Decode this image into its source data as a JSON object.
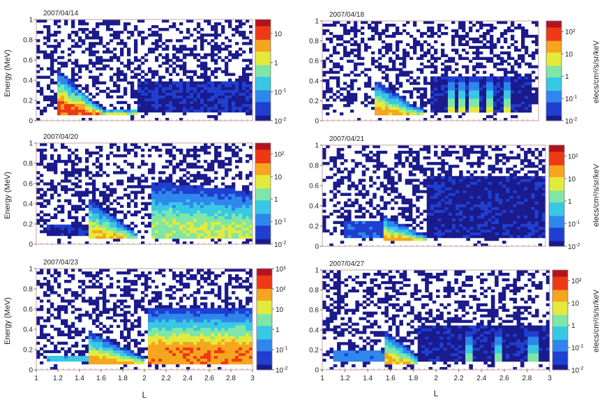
{
  "figure": {
    "xlabel": "L",
    "ylabel": "Energy (MeV)",
    "colorbar_label": "elecs/cm²/s/sr/keV"
  },
  "colormap": [
    "#1a1a8c",
    "#1f3fd0",
    "#2f86ec",
    "#38c8e6",
    "#7ee6a6",
    "#e3ea3c",
    "#f6a51e",
    "#ee3a14",
    "#b5121f"
  ],
  "chart_data": [
    {
      "type": "heatmap",
      "title": "2007/04/14",
      "x_axis": {
        "range": [
          1,
          3
        ],
        "ticks": []
      },
      "y_axis": {
        "range": [
          0,
          1
        ],
        "ticks": [
          0,
          0.2,
          0.4,
          0.6,
          0.8,
          1
        ]
      },
      "colorbar": {
        "scale": "log",
        "range": [
          0.01,
          30
        ],
        "tick_labels": [
          "10",
          "1",
          "10-1",
          "10-2"
        ],
        "tick_values": [
          10,
          1,
          0.1,
          0.01
        ]
      },
      "features": [
        {
          "kind": "band",
          "x_start": 1.2,
          "x_end": 1.92,
          "e_top": 0.5,
          "e_bottom": 0.08,
          "slope": -0.9,
          "peak_log10": 1.2
        },
        {
          "kind": "noise_floor",
          "x_start": 1.95,
          "x_end": 3.0,
          "e_top": 0.4,
          "log10": -1.8
        }
      ]
    },
    {
      "type": "heatmap",
      "title": "2007/04/18",
      "x_axis": {
        "range": [
          1,
          3
        ],
        "ticks": []
      },
      "y_axis": {
        "range": [
          0,
          1
        ],
        "ticks": [
          0,
          0.2,
          0.4,
          0.6,
          0.8,
          1
        ]
      },
      "colorbar": {
        "scale": "log",
        "range": [
          0.01,
          300
        ],
        "tick_labels": [
          "10²",
          "10",
          "1",
          "10-1",
          "10-2"
        ],
        "tick_values": [
          100,
          10,
          1,
          0.1,
          0.01
        ]
      },
      "features": [
        {
          "kind": "band",
          "x_start": 1.5,
          "x_end": 1.95,
          "e_top": 0.4,
          "e_bottom": 0.1,
          "slope": -0.7,
          "peak_log10": 1.5
        },
        {
          "kind": "spikes",
          "x_values": [
            2.2,
            2.3,
            2.4,
            2.55,
            2.7
          ],
          "e_top": 0.45,
          "peak_log10": 1.5
        },
        {
          "kind": "noise_floor",
          "x_start": 2.0,
          "x_end": 2.95,
          "e_top": 0.45,
          "log10": -1.8
        }
      ]
    },
    {
      "type": "heatmap",
      "title": "2007/04/20",
      "x_axis": {
        "range": [
          1,
          3
        ],
        "ticks": []
      },
      "y_axis": {
        "range": [
          0,
          1
        ],
        "ticks": [
          0,
          0.2,
          0.4,
          0.6,
          0.8,
          1
        ]
      },
      "colorbar": {
        "scale": "log",
        "range": [
          0.01,
          300
        ],
        "tick_labels": [
          "10²",
          "10",
          "1",
          "10-1",
          "10-2"
        ],
        "tick_values": [
          100,
          10,
          1,
          0.1,
          0.01
        ]
      },
      "features": [
        {
          "kind": "band",
          "x_start": 1.5,
          "x_end": 1.95,
          "e_top": 0.45,
          "e_bottom": 0.08,
          "slope": -0.8,
          "peak_log10": 1.3
        },
        {
          "kind": "band",
          "x_start": 2.05,
          "x_end": 3.0,
          "e_top": 0.62,
          "e_bottom": 0.08,
          "slope": -0.1,
          "peak_log10": 0.8
        },
        {
          "kind": "noise_floor",
          "x_start": 1.1,
          "x_end": 1.5,
          "e_top": 0.2,
          "log10": -1.8
        }
      ]
    },
    {
      "type": "heatmap",
      "title": "2007/04/21",
      "x_axis": {
        "range": [
          1,
          3
        ],
        "ticks": []
      },
      "y_axis": {
        "range": [
          0,
          1
        ],
        "ticks": [
          0,
          0.2,
          0.4,
          0.6,
          0.8,
          1
        ]
      },
      "colorbar": {
        "scale": "log",
        "range": [
          0.01,
          300
        ],
        "tick_labels": [
          "10²",
          "10",
          "1",
          "10-1",
          "10-2"
        ],
        "tick_values": [
          100,
          10,
          1,
          0.1,
          0.01
        ]
      },
      "features": [
        {
          "kind": "band",
          "x_start": 1.55,
          "x_end": 1.95,
          "e_top": 0.3,
          "e_bottom": 0.08,
          "slope": -0.5,
          "peak_log10": 1.6
        },
        {
          "kind": "noise_floor",
          "x_start": 1.95,
          "x_end": 3.0,
          "e_top": 0.7,
          "log10": -1.8
        },
        {
          "kind": "noise_floor",
          "x_start": 1.2,
          "x_end": 1.55,
          "e_top": 0.25,
          "log10": -1.3
        }
      ]
    },
    {
      "type": "heatmap",
      "title": "2007/04/23",
      "x_axis": {
        "range": [
          1,
          3
        ],
        "ticks": [
          1,
          1.2,
          1.4,
          1.6,
          1.8,
          2,
          2.2,
          2.4,
          2.6,
          2.8,
          3
        ]
      },
      "y_axis": {
        "range": [
          0,
          1
        ],
        "ticks": [
          0,
          0.2,
          0.4,
          0.6,
          0.8,
          1
        ]
      },
      "colorbar": {
        "scale": "log",
        "range": [
          0.01,
          1000
        ],
        "tick_labels": [
          "10³",
          "10²",
          "10",
          "1",
          "10-1",
          "10-2"
        ],
        "tick_values": [
          1000,
          100,
          10,
          1,
          0.1,
          0.01
        ]
      },
      "features": [
        {
          "kind": "band",
          "x_start": 1.5,
          "x_end": 2.0,
          "e_top": 0.38,
          "e_bottom": 0.05,
          "slope": -0.5,
          "peak_log10": 2.0
        },
        {
          "kind": "band",
          "x_start": 2.02,
          "x_end": 3.0,
          "e_top": 0.62,
          "e_bottom": 0.05,
          "slope": 0.0,
          "peak_log10": 2.2
        },
        {
          "kind": "noise_floor",
          "x_start": 1.1,
          "x_end": 1.5,
          "e_top": 0.15,
          "log10": -0.3
        }
      ]
    },
    {
      "type": "heatmap",
      "title": "2007/04/27",
      "x_axis": {
        "range": [
          1,
          3
        ],
        "ticks": [
          1,
          1.2,
          1.4,
          1.6,
          1.8,
          2,
          2.2,
          2.4,
          2.6,
          2.8,
          3
        ]
      },
      "y_axis": {
        "range": [
          0,
          1
        ],
        "ticks": [
          0,
          0.2,
          0.4,
          0.6,
          0.8,
          1
        ]
      },
      "colorbar": {
        "scale": "log",
        "range": [
          0.01,
          300
        ],
        "tick_labels": [
          "10²",
          "10",
          "1",
          "10-1",
          "10-2"
        ],
        "tick_values": [
          100,
          10,
          1,
          0.1,
          0.01
        ]
      },
      "features": [
        {
          "kind": "band",
          "x_start": 1.55,
          "x_end": 1.85,
          "e_top": 0.4,
          "e_bottom": 0.08,
          "slope": -0.9,
          "peak_log10": 1.4
        },
        {
          "kind": "spikes",
          "x_values": [
            2.3,
            2.55,
            2.85
          ],
          "e_top": 0.4,
          "peak_log10": 1.0
        },
        {
          "kind": "noise_floor",
          "x_start": 1.85,
          "x_end": 3.0,
          "e_top": 0.45,
          "log10": -1.8
        },
        {
          "kind": "noise_floor",
          "x_start": 1.1,
          "x_end": 1.55,
          "e_top": 0.2,
          "log10": -1.0
        }
      ]
    }
  ]
}
